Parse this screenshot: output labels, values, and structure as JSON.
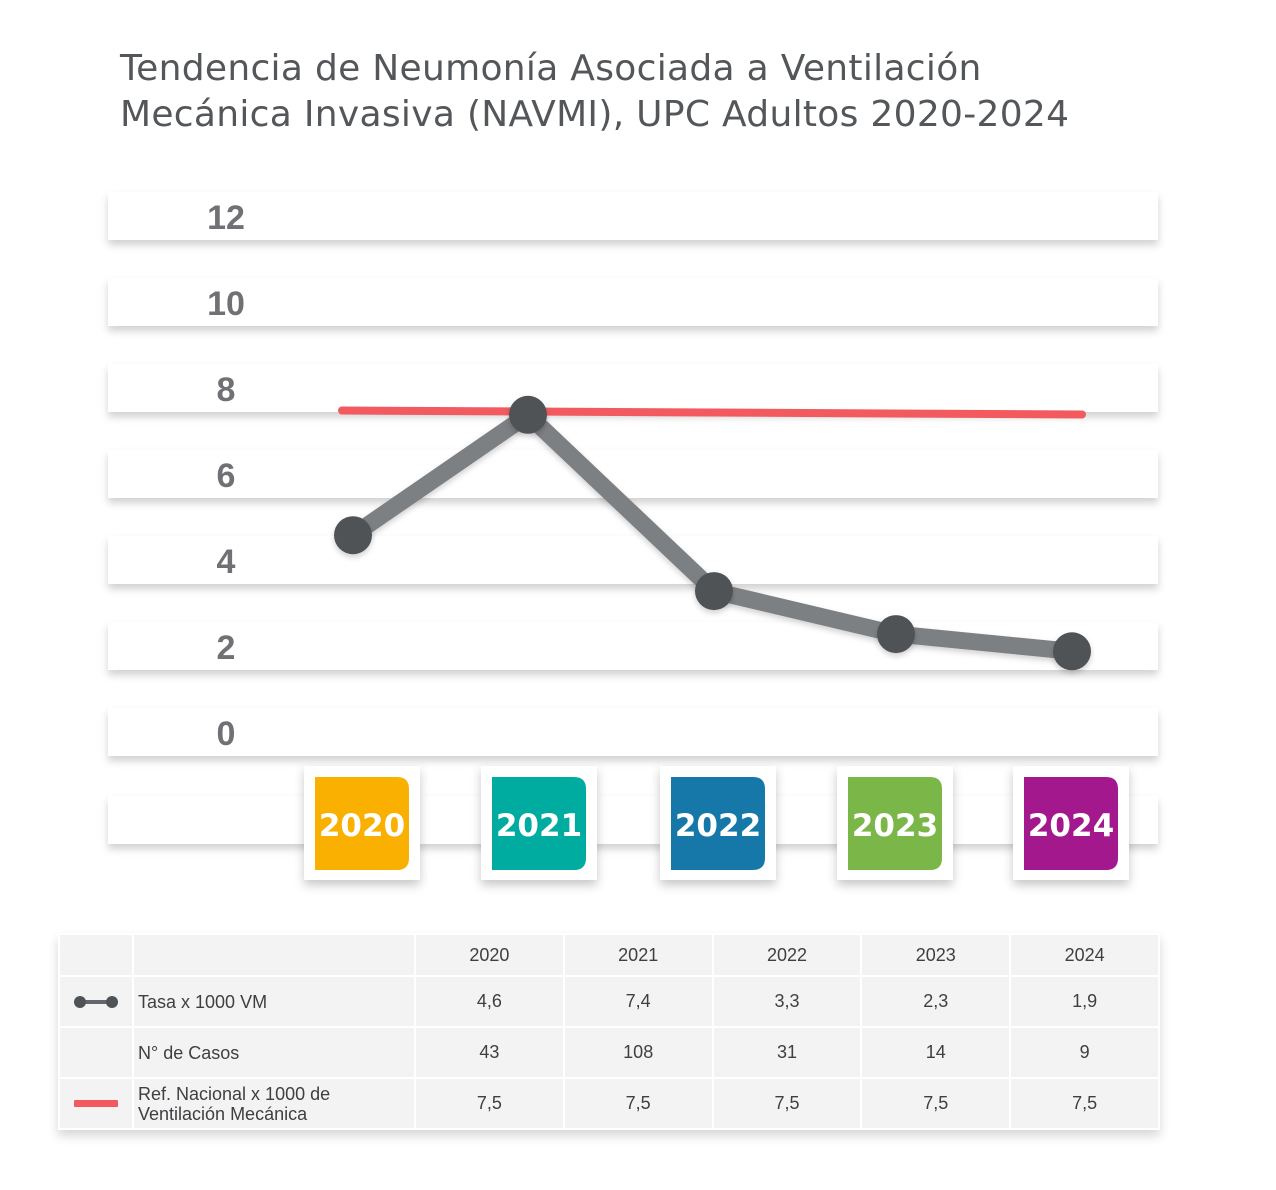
{
  "title_lines": [
    "Tendencia de Neumonía Asociada a Ventilación",
    "Mecánica Invasiva (NAVMI), UPC Adultos 2020-2024"
  ],
  "chart_data": {
    "type": "line",
    "title": "Tendencia de Neumonía Asociada a Ventilación Mecánica Invasiva (NAVMI), UPC Adultos 2020-2024",
    "x": [
      "2020",
      "2021",
      "2022",
      "2023",
      "2024"
    ],
    "yticks": [
      0,
      2,
      4,
      6,
      8,
      10,
      12
    ],
    "ylim": [
      0,
      12
    ],
    "series": [
      {
        "name": "Tasa x 1000 VM",
        "values": [
          4.6,
          7.4,
          3.3,
          2.3,
          1.9
        ],
        "color": "#7d8083"
      },
      {
        "name": "Ref. Nacional x 1000 de Ventilación Mecánica",
        "values": [
          7.5,
          7.5,
          7.5,
          7.5,
          7.5
        ],
        "color": "#f25a5f"
      }
    ],
    "badge_colors": [
      "#f9b000",
      "#00aba0",
      "#1678a8",
      "#7ab648",
      "#a3198d"
    ]
  },
  "table": {
    "headers": [
      "2020",
      "2021",
      "2022",
      "2023",
      "2024"
    ],
    "rows": [
      {
        "legend": "line-dot",
        "label": "Tasa x 1000 VM",
        "values": [
          "4,6",
          "7,4",
          "3,3",
          "2,3",
          "1,9"
        ]
      },
      {
        "legend": "none",
        "label": "N° de Casos",
        "values": [
          "43",
          "108",
          "31",
          "14",
          "9"
        ]
      },
      {
        "legend": "red-line",
        "label": "Ref. Nacional x 1000 de Ventilación Mecánica",
        "values": [
          "7,5",
          "7,5",
          "7,5",
          "7,5",
          "7,5"
        ]
      }
    ]
  }
}
